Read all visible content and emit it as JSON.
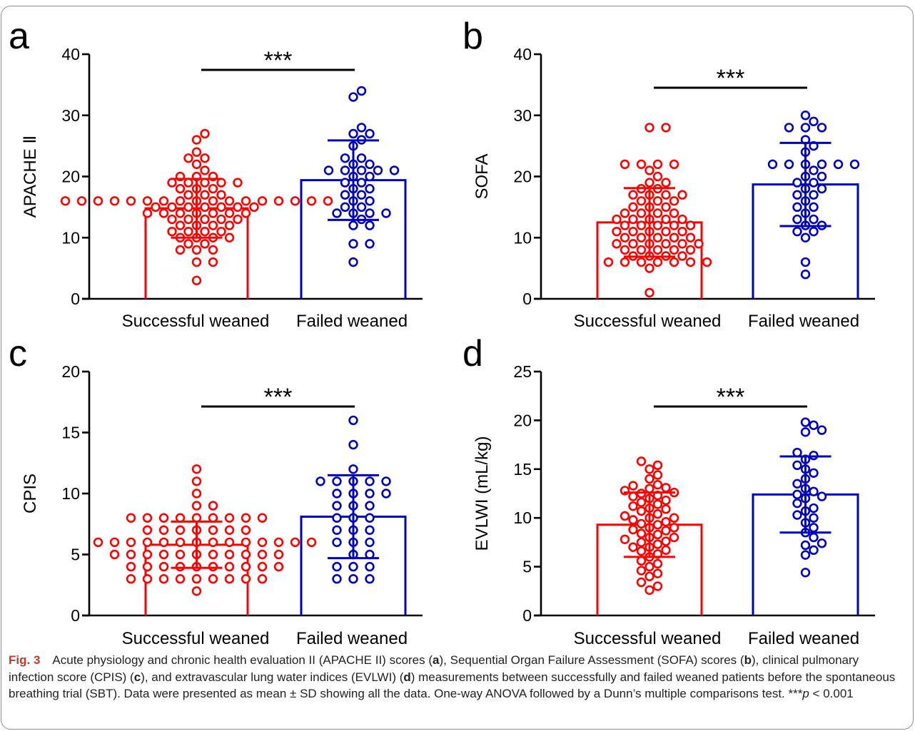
{
  "figure": {
    "caption": {
      "label": "Fig. 3",
      "parts": [
        {
          "text": "Acute physiology and chronic health evaluation II (APACHE II) scores (",
          "bold": false
        },
        {
          "text": "a",
          "bold": true
        },
        {
          "text": "), Sequential Organ Failure Assessment (SOFA) scores (",
          "bold": false
        },
        {
          "text": "b",
          "bold": true
        },
        {
          "text": "), clinical pulmonary infection score (CPIS) (",
          "bold": false
        },
        {
          "text": "c",
          "bold": true
        },
        {
          "text": "), and extravascular lung water indices (EVLWI) (",
          "bold": false
        },
        {
          "text": "d",
          "bold": true
        },
        {
          "text": ") measurements between successfully and failed weaned patients before the spontaneous breathing trial (SBT). Data were presented as mean ± SD showing all the data. One-way ANOVA followed by a Dunn’s multiple comparisons test. ***",
          "bold": false
        },
        {
          "text": "p",
          "bold": false,
          "italic": true
        },
        {
          "text": " < 0.001",
          "bold": false
        }
      ]
    }
  },
  "colors": {
    "successful": "#ff0000",
    "failed": "#0000c0",
    "axis": "#000000"
  },
  "chart_data": [
    {
      "panel": "a",
      "type": "bar",
      "ylabel": "APACHE Ⅱ",
      "ylim": [
        0,
        40
      ],
      "yticks": [
        0,
        10,
        20,
        30,
        40
      ],
      "categories": [
        "Successful weaned",
        "Failed weaned"
      ],
      "significance": "***",
      "series": [
        {
          "name": "Successful weaned",
          "mean": 14.8,
          "sd": 4.8,
          "points": [
            3,
            6,
            6,
            8,
            8,
            8,
            9,
            9,
            10,
            10,
            10,
            10,
            11,
            11,
            11,
            11,
            12,
            12,
            12,
            12,
            13,
            13,
            13,
            13,
            13,
            14,
            14,
            14,
            14,
            14,
            14,
            14,
            15,
            15,
            15,
            15,
            15,
            15,
            15,
            16,
            16,
            16,
            16,
            16,
            16,
            16,
            16,
            16,
            16,
            16,
            16,
            16,
            16,
            16,
            16,
            16,
            17,
            17,
            17,
            18,
            18,
            18,
            19,
            19,
            19,
            19,
            19,
            20,
            20,
            20,
            21,
            22,
            23,
            23,
            24,
            26,
            27
          ]
        },
        {
          "name": "Failed weaned",
          "mean": 19.4,
          "sd": 6.5,
          "points": [
            6,
            9,
            9,
            12,
            12,
            13,
            14,
            14,
            14,
            14,
            15,
            15,
            16,
            16,
            17,
            17,
            18,
            18,
            19,
            19,
            20,
            20,
            21,
            21,
            21,
            21,
            21,
            22,
            22,
            23,
            23,
            25,
            26,
            27,
            27,
            28,
            33,
            34
          ]
        }
      ]
    },
    {
      "panel": "b",
      "type": "bar",
      "ylabel": "SOFA",
      "ylim": [
        0,
        40
      ],
      "yticks": [
        0,
        10,
        20,
        30,
        40
      ],
      "categories": [
        "Successful weaned",
        "Failed weaned"
      ],
      "significance": "***",
      "series": [
        {
          "name": "Successful weaned",
          "mean": 12.5,
          "sd": 5.6,
          "points": [
            1,
            5,
            6,
            6,
            6,
            6,
            6,
            6,
            6,
            7,
            7,
            7,
            7,
            8,
            8,
            8,
            8,
            8,
            9,
            9,
            9,
            9,
            9,
            9,
            10,
            10,
            10,
            10,
            10,
            11,
            11,
            11,
            11,
            11,
            12,
            12,
            12,
            12,
            12,
            13,
            13,
            13,
            13,
            13,
            14,
            14,
            14,
            14,
            15,
            15,
            15,
            16,
            16,
            16,
            17,
            17,
            17,
            17,
            18,
            18,
            19,
            19,
            20,
            21,
            22,
            22,
            22,
            22,
            28,
            28
          ]
        },
        {
          "name": "Failed weaned",
          "mean": 18.7,
          "sd": 6.8,
          "points": [
            4,
            6,
            10,
            11,
            11,
            12,
            12,
            13,
            13,
            14,
            15,
            15,
            16,
            17,
            17,
            18,
            18,
            19,
            19,
            20,
            20,
            21,
            22,
            22,
            22,
            22,
            22,
            22,
            24,
            25,
            26,
            28,
            28,
            28,
            29,
            30
          ]
        }
      ]
    },
    {
      "panel": "c",
      "type": "bar",
      "ylabel": "CPIS",
      "ylim": [
        0,
        20
      ],
      "yticks": [
        0,
        5,
        10,
        15,
        20
      ],
      "categories": [
        "Successful weaned",
        "Failed weaned"
      ],
      "significance": "***",
      "series": [
        {
          "name": "Successful weaned",
          "mean": 5.8,
          "sd": 1.9,
          "points": [
            2,
            3,
            3,
            3,
            3,
            3,
            3,
            3,
            3,
            3,
            4,
            4,
            4,
            4,
            4,
            4,
            4,
            4,
            4,
            4,
            5,
            5,
            5,
            5,
            5,
            5,
            5,
            5,
            5,
            5,
            5,
            6,
            6,
            6,
            6,
            6,
            6,
            6,
            6,
            6,
            6,
            6,
            6,
            6,
            6,
            7,
            7,
            7,
            7,
            7,
            7,
            7,
            8,
            8,
            8,
            8,
            8,
            8,
            8,
            8,
            8,
            9,
            9,
            10,
            11,
            12
          ]
        },
        {
          "name": "Failed weaned",
          "mean": 8.1,
          "sd": 3.4,
          "points": [
            3,
            3,
            3,
            4,
            4,
            4,
            5,
            5,
            6,
            6,
            6,
            7,
            7,
            7,
            8,
            8,
            8,
            9,
            9,
            9,
            10,
            10,
            10,
            10,
            11,
            11,
            11,
            11,
            11,
            12,
            14,
            16
          ]
        }
      ]
    },
    {
      "panel": "d",
      "type": "bar",
      "ylabel": "EVLWI (mL/kg)",
      "ylim": [
        0,
        25
      ],
      "yticks": [
        0,
        5,
        10,
        15,
        20,
        25
      ],
      "categories": [
        "Successful weaned",
        "Failed weaned"
      ],
      "significance": "***",
      "series": [
        {
          "name": "Successful weaned",
          "mean": 9.3,
          "sd": 3.3,
          "points": [
            2.6,
            3.0,
            3.4,
            4.0,
            4.3,
            4.6,
            5.0,
            5.3,
            5.6,
            6.0,
            6.3,
            6.6,
            6.7,
            7.0,
            7.0,
            7.3,
            7.5,
            7.6,
            7.8,
            8.0,
            8.0,
            8.3,
            8.4,
            8.7,
            8.8,
            9.0,
            9.0,
            9.3,
            9.4,
            9.6,
            9.8,
            10.0,
            10.0,
            10.2,
            10.4,
            10.7,
            10.9,
            11.0,
            11.2,
            11.4,
            11.6,
            11.8,
            12.0,
            12.2,
            12.3,
            12.5,
            12.6,
            12.8,
            13.0,
            13.1,
            13.3,
            13.4,
            14.0,
            14.4,
            15.0,
            15.4,
            15.8
          ]
        },
        {
          "name": "Failed weaned",
          "mean": 12.4,
          "sd": 3.9,
          "points": [
            4.4,
            6.2,
            6.7,
            7.2,
            7.4,
            8.0,
            8.5,
            9.0,
            9.5,
            10.0,
            10.3,
            10.7,
            11.0,
            11.5,
            12.0,
            12.2,
            12.4,
            12.7,
            13.0,
            13.5,
            14.0,
            14.6,
            15.0,
            15.4,
            16.0,
            16.4,
            16.7,
            18.8,
            19.0,
            19.5,
            19.8
          ]
        }
      ]
    }
  ]
}
